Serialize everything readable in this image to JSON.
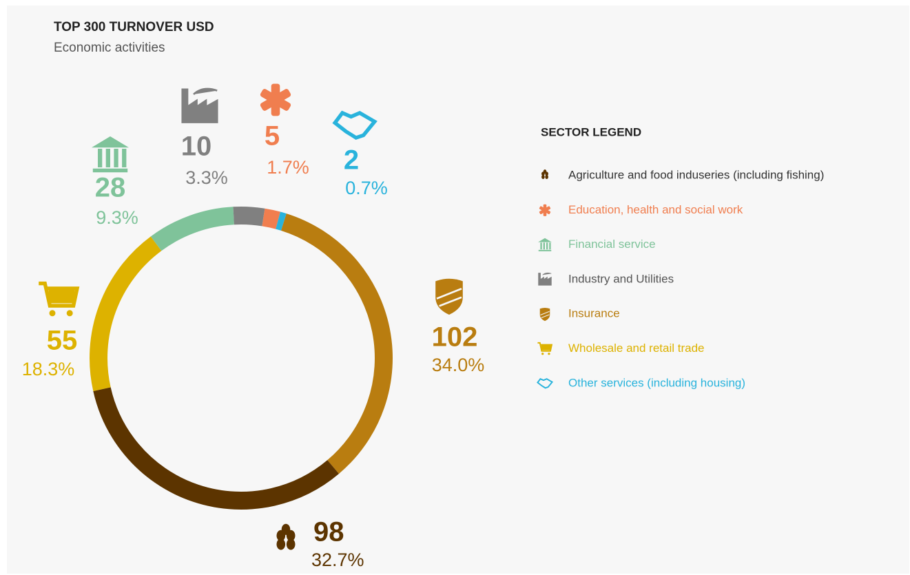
{
  "chart_data": {
    "type": "donut",
    "title": "TOP 300 TURNOVER USD",
    "subtitle": "Economic activities",
    "legend_title": "SECTOR LEGEND",
    "categories": [
      "Agriculture and food induseries (including fishing)",
      "Education, health and social work",
      "Financial service",
      "Industry and Utilities",
      "Insurance",
      "Wholesale and retail trade",
      "Other services (including housing)"
    ],
    "values": [
      98,
      5,
      28,
      10,
      102,
      55,
      2
    ],
    "percent_labels": [
      "32.7%",
      "1.7%",
      "9.3%",
      "3.3%",
      "34.0%",
      "18.3%",
      "0.7%"
    ],
    "colors": [
      "#5c3400",
      "#f07e4f",
      "#7fc39a",
      "#808080",
      "#b97d10",
      "#ddb200",
      "#29b3dc"
    ]
  }
}
